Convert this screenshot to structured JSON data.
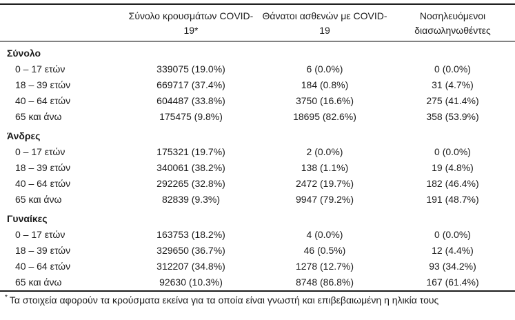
{
  "header": {
    "age_column": "",
    "cases": "Σύνολο κρουσμάτων COVID-19*",
    "deaths": "Θάνατοι ασθενών με COVID-19",
    "intubated": "Νοσηλευόμενοι διασωληνωθέντες"
  },
  "sections": [
    {
      "label": "Σύνολο",
      "rows": [
        {
          "age": "0 – 17 ετών",
          "cases": "339075 (19.0%)",
          "deaths": "6 (0.0%)",
          "intubated": "0 (0.0%)"
        },
        {
          "age": "18 – 39 ετών",
          "cases": "669717 (37.4%)",
          "deaths": "184 (0.8%)",
          "intubated": "31 (4.7%)"
        },
        {
          "age": "40 – 64 ετών",
          "cases": "604487 (33.8%)",
          "deaths": "3750 (16.6%)",
          "intubated": "275 (41.4%)"
        },
        {
          "age": "65 και άνω",
          "cases": "175475 (9.8%)",
          "deaths": "18695 (82.6%)",
          "intubated": "358 (53.9%)"
        }
      ]
    },
    {
      "label": "Άνδρες",
      "rows": [
        {
          "age": "0 – 17 ετών",
          "cases": "175321 (19.7%)",
          "deaths": "2 (0.0%)",
          "intubated": "0 (0.0%)"
        },
        {
          "age": "18 – 39 ετών",
          "cases": "340061 (38.2%)",
          "deaths": "138 (1.1%)",
          "intubated": "19 (4.8%)"
        },
        {
          "age": "40 – 64 ετών",
          "cases": "292265 (32.8%)",
          "deaths": "2472 (19.7%)",
          "intubated": "182 (46.4%)"
        },
        {
          "age": "65 και άνω",
          "cases": "82839 (9.3%)",
          "deaths": "9947 (79.2%)",
          "intubated": "191 (48.7%)"
        }
      ]
    },
    {
      "label": "Γυναίκες",
      "rows": [
        {
          "age": "0 – 17 ετών",
          "cases": "163753 (18.2%)",
          "deaths": "4 (0.0%)",
          "intubated": "0 (0.0%)"
        },
        {
          "age": "18 – 39 ετών",
          "cases": "329650 (36.7%)",
          "deaths": "46 (0.5%)",
          "intubated": "12 (4.4%)"
        },
        {
          "age": "40 – 64 ετών",
          "cases": "312207 (34.8%)",
          "deaths": "1278 (12.7%)",
          "intubated": "93 (34.2%)"
        },
        {
          "age": "65 και άνω",
          "cases": "92630 (10.3%)",
          "deaths": "8748 (86.8%)",
          "intubated": "167 (61.4%)"
        }
      ]
    }
  ],
  "footnote": {
    "marker": "*",
    "text": "Τα στοιχεία αφορούν τα κρούσματα εκείνα για τα οποία είναι γνωστή και επιβεβαιωμένη η ηλικία τους"
  },
  "colors": {
    "text": "#1b1b1b",
    "rule_dark": "#1c1c1c",
    "rule_gray": "#828282",
    "background": "#ffffff"
  }
}
